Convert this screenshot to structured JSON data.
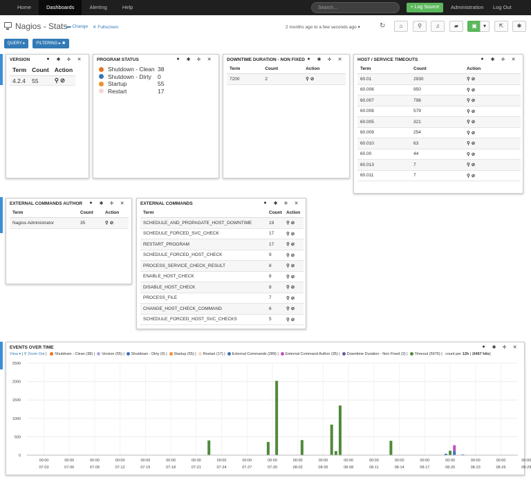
{
  "navbar": {
    "items": [
      "Home",
      "Dashboards",
      "Alerting",
      "Help"
    ],
    "search_placeholder": "Search...",
    "log_source": "+ Log Source",
    "administration": "Administration",
    "logout": "Log Out"
  },
  "titlebar": {
    "title": "Nagios - Stats",
    "change": "Change",
    "fullscreen": "Fullscreen",
    "timerange": "2 months ago to a few seconds ago",
    "buttons": [
      "home-icon",
      "search-icon",
      "bell-icon",
      "folder-icon",
      "save-icon",
      "share-icon",
      "gear-icon"
    ]
  },
  "query": {
    "query_label": "QUERY",
    "filter_label": "FILTERING"
  },
  "version": {
    "title": "VERSION",
    "headers": [
      "Term",
      "Count",
      "Action"
    ],
    "rows": [
      {
        "term": "4.2.4",
        "count": "55"
      }
    ]
  },
  "program_status": {
    "title": "PROGRAM STATUS",
    "items": [
      {
        "label": "Shutdown - Clean",
        "count": "38",
        "color": "#e8731f"
      },
      {
        "label": "Shutdown - Dirty",
        "count": "0",
        "color": "#3b73b8"
      },
      {
        "label": "Startup",
        "count": "55",
        "color": "#f0912d"
      },
      {
        "label": "Restart",
        "count": "17",
        "color": "#f6d6d1"
      }
    ]
  },
  "downtime": {
    "title": "DOWNTIME DURATION - NON FIXED",
    "headers": [
      "Term",
      "Count",
      "Action"
    ],
    "rows": [
      {
        "term": "7200",
        "count": "2"
      }
    ]
  },
  "timeouts": {
    "title": "HOST / SERVICE TIMEOUTS",
    "headers": [
      "Term",
      "Count",
      "Action"
    ],
    "rows": [
      {
        "term": "60.01",
        "count": "2930"
      },
      {
        "term": "60.006",
        "count": "950"
      },
      {
        "term": "60.007",
        "count": "798"
      },
      {
        "term": "60.008",
        "count": "579"
      },
      {
        "term": "60.005",
        "count": "321"
      },
      {
        "term": "60.009",
        "count": "254"
      },
      {
        "term": "60.010",
        "count": "63"
      },
      {
        "term": "60.00",
        "count": "44"
      },
      {
        "term": "60.013",
        "count": "7"
      },
      {
        "term": "60.011",
        "count": "7"
      }
    ]
  },
  "ext_author": {
    "title": "EXTERNAL COMMANDS AUTHOR",
    "headers": [
      "Term",
      "Count",
      "Action"
    ],
    "rows": [
      {
        "term": "Nagios Administrator",
        "count": "35"
      }
    ]
  },
  "ext_commands": {
    "title": "EXTERNAL COMMANDS",
    "headers": [
      "Term",
      "Count",
      "Action"
    ],
    "rows": [
      {
        "term": "SCHEDULE_AND_PROPAGATE_HOST_DOWNTIME",
        "count": "19"
      },
      {
        "term": "SCHEDULE_FORCED_SVC_CHECK",
        "count": "17"
      },
      {
        "term": "RESTART_PROGRAM",
        "count": "17"
      },
      {
        "term": "SCHEDULE_FORCED_HOST_CHECK",
        "count": "9"
      },
      {
        "term": "PROCESS_SERVICE_CHECK_RESULT",
        "count": "8"
      },
      {
        "term": "ENABLE_HOST_CHECK",
        "count": "8"
      },
      {
        "term": "DISABLE_HOST_CHECK",
        "count": "8"
      },
      {
        "term": "PROCESS_FILE",
        "count": "7"
      },
      {
        "term": "CHANGE_HOST_CHECK_COMMAND",
        "count": "6"
      },
      {
        "term": "SCHEDULE_FORCED_HOST_SVC_CHECKS",
        "count": "5"
      }
    ]
  },
  "events": {
    "title": "EVENTS OVER TIME",
    "view": "View",
    "zoom_out": "Zoom Out",
    "legend": [
      {
        "label": "Shutdown - Clean (38)",
        "color": "#e8731f"
      },
      {
        "label": "Version (55)",
        "color": "#b7a9d9"
      },
      {
        "label": "Shutdown - Dirty (0)",
        "color": "#3b73b8"
      },
      {
        "label": "Startup (55)",
        "color": "#f0912d"
      },
      {
        "label": "Restart (17)",
        "color": "#f6d6d1"
      },
      {
        "label": "External Commands (289)",
        "color": "#3b73b8"
      },
      {
        "label": "External Command Author (35)",
        "color": "#c54fc0"
      },
      {
        "label": "Downtime Duration - Non Fixed (2)",
        "color": "#6a5aa8"
      },
      {
        "label": "Timeout (5976)",
        "color": "#4f8a3b"
      }
    ],
    "count_per": "count per",
    "interval": "12h",
    "hits": "6467 hits"
  },
  "chart_data": {
    "type": "bar",
    "title": "EVENTS OVER TIME",
    "ylim": [
      0,
      2500
    ],
    "yticks": [
      0,
      500,
      1000,
      1500,
      2000,
      2500
    ],
    "x_tick_labels": [
      "07-03",
      "07-06",
      "07-09",
      "07-12",
      "07-15",
      "07-18",
      "07-21",
      "07-24",
      "07-27",
      "07-30",
      "08-02",
      "08-05",
      "08-08",
      "08-11",
      "08-14",
      "08-17",
      "08-20",
      "08-23",
      "08-26",
      "08-29"
    ],
    "x_tick_time": "00:00",
    "x_range_days": [
      0,
      58
    ],
    "series": [
      {
        "name": "Timeout",
        "color": "#4f8a3b",
        "points": [
          [
            21.5,
            400
          ],
          [
            28.5,
            360
          ],
          [
            29.5,
            2020
          ],
          [
            32.5,
            410
          ],
          [
            36.0,
            830
          ],
          [
            36.5,
            110
          ],
          [
            37.0,
            1350
          ],
          [
            43.0,
            390
          ],
          [
            50.0,
            120
          ]
        ]
      },
      {
        "name": "External Commands",
        "color": "#3b73b8",
        "points": [
          [
            49.5,
            40
          ],
          [
            50.5,
            110
          ],
          [
            51.5,
            20
          ]
        ]
      },
      {
        "name": "External Command Author",
        "color": "#c54fc0",
        "points": [
          [
            50.5,
            160
          ]
        ]
      }
    ],
    "grid": true
  }
}
